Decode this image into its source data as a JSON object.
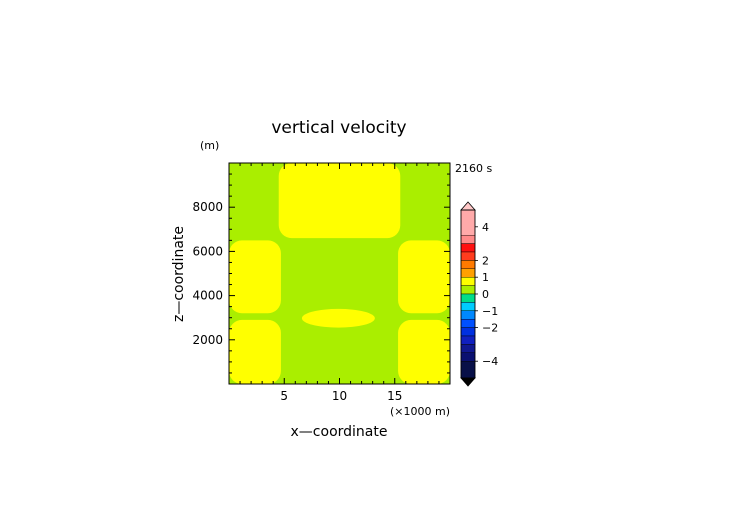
{
  "chart_data": {
    "type": "heatmap",
    "title": "vertical velocity",
    "time_label": "2160 s",
    "xlabel": "x—coordinate",
    "xunit": "(×1000 m)",
    "ylabel": "z—coordinate",
    "yunit": "(m)",
    "xlim": [
      0,
      20
    ],
    "ylim": [
      0,
      10000
    ],
    "x_ticks": [
      5,
      10,
      15
    ],
    "x_tick_labels": [
      "5",
      "10",
      "15"
    ],
    "y_ticks": [
      2000,
      4000,
      6000,
      8000
    ],
    "y_tick_labels": [
      "2000",
      "4000",
      "6000",
      "8000"
    ],
    "background_level": "0 to 0.5",
    "contour_regions": [
      {
        "level": "0.5 to 1",
        "shape": "rounded-rect",
        "x": [
          4.5,
          15.5
        ],
        "y": [
          6600,
          10000
        ]
      },
      {
        "level": "0.5 to 1",
        "shape": "rounded-rect",
        "x": [
          0,
          4.7
        ],
        "y": [
          3200,
          6500
        ]
      },
      {
        "level": "0.5 to 1",
        "shape": "rounded-rect",
        "x": [
          15.3,
          20
        ],
        "y": [
          3200,
          6500
        ]
      },
      {
        "level": "0.5 to 1",
        "shape": "ellipse",
        "x": [
          6.6,
          13.2
        ],
        "y": [
          2550,
          3400
        ]
      },
      {
        "level": "0.5 to 1",
        "shape": "rounded-rect",
        "x": [
          0,
          4.7
        ],
        "y": [
          0,
          2900
        ]
      },
      {
        "level": "0.5 to 1",
        "shape": "rounded-rect",
        "x": [
          15.3,
          20
        ],
        "y": [
          0,
          2900
        ]
      }
    ],
    "colorbar": {
      "extend": "both",
      "tick_labels": [
        "4",
        "2",
        "1",
        "0",
        "−1",
        "−2",
        "−4"
      ],
      "tick_values": [
        4,
        2,
        1,
        0,
        -1,
        -2,
        -4
      ],
      "bands": [
        {
          "from": 3.5,
          "to": 5,
          "color": "#ffaaaa"
        },
        {
          "from": 3,
          "to": 3.5,
          "color": "#ff8a8a"
        },
        {
          "from": 2.5,
          "to": 3,
          "color": "#ff1010"
        },
        {
          "from": 2,
          "to": 2.5,
          "color": "#ff3c1e"
        },
        {
          "from": 1.5,
          "to": 2,
          "color": "#ff7a00"
        },
        {
          "from": 1,
          "to": 1.5,
          "color": "#ffa000"
        },
        {
          "from": 0.5,
          "to": 1,
          "color": "#ffff00"
        },
        {
          "from": 0,
          "to": 0.5,
          "color": "#aaee00"
        },
        {
          "from": -0.5,
          "to": 0,
          "color": "#00dd88"
        },
        {
          "from": -1,
          "to": -0.5,
          "color": "#00ccff"
        },
        {
          "from": -1.5,
          "to": -1,
          "color": "#0088ff"
        },
        {
          "from": -2,
          "to": -1.5,
          "color": "#0050ff"
        },
        {
          "from": -2.5,
          "to": -2,
          "color": "#0030e0"
        },
        {
          "from": -3,
          "to": -2.5,
          "color": "#1020c0"
        },
        {
          "from": -3.5,
          "to": -3,
          "color": "#101890"
        },
        {
          "from": -4,
          "to": -3.5,
          "color": "#0a1070"
        },
        {
          "from": -5,
          "to": -4,
          "color": "#081048"
        }
      ],
      "over_color": "#ffc8c8",
      "under_color": "#000000"
    },
    "grid": false
  }
}
